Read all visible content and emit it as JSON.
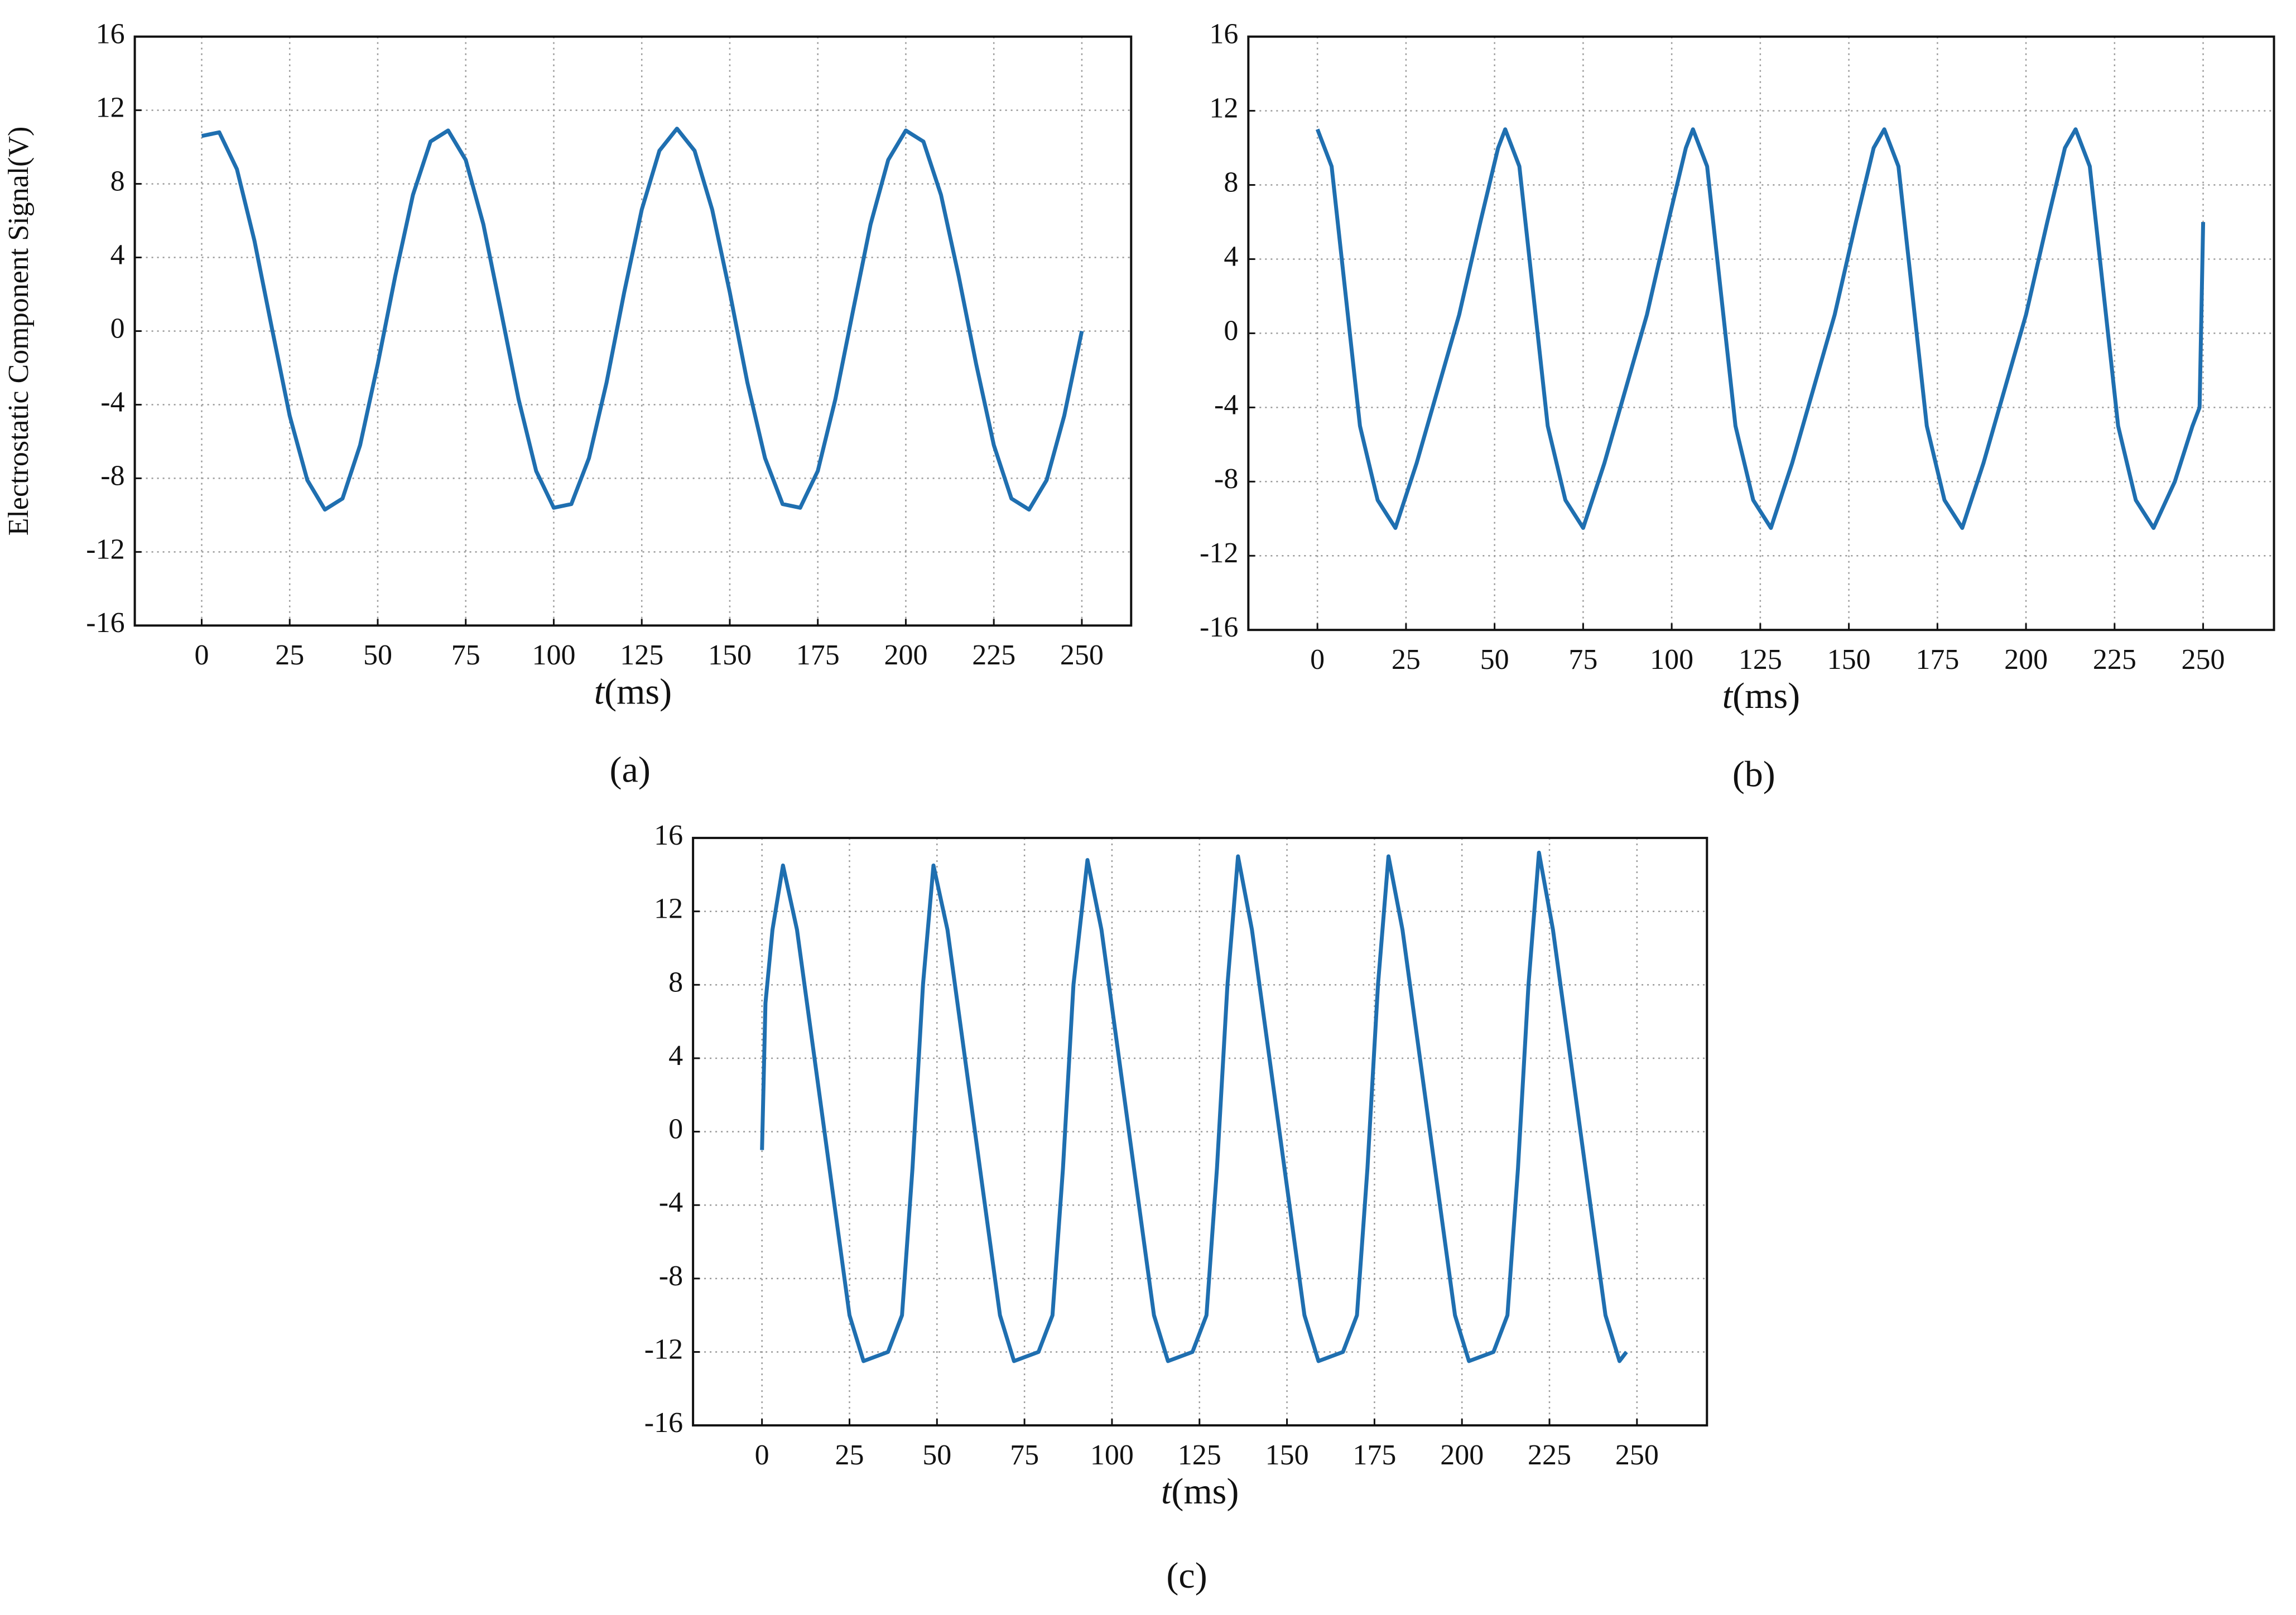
{
  "chart_data": [
    {
      "type": "line",
      "label": "(a)",
      "xlabel": "t(ms)",
      "ylabel": "Electrostatic Component Signal(V)",
      "x": [
        0,
        5,
        10,
        15,
        20,
        25,
        30,
        35,
        40,
        45,
        50,
        55,
        60,
        65,
        70,
        75,
        80,
        85,
        90,
        95,
        100,
        105,
        110,
        115,
        120,
        125,
        130,
        135,
        140,
        145,
        150,
        155,
        160,
        165,
        170,
        175,
        180,
        185,
        190,
        195,
        200,
        205,
        210,
        215,
        220,
        225,
        230,
        235,
        240,
        245,
        250
      ],
      "values": [
        10.6,
        10.8,
        8.8,
        4.9,
        0.1,
        -4.6,
        -8.1,
        -9.7,
        -9.1,
        -6.2,
        -1.8,
        3.0,
        7.4,
        10.3,
        10.9,
        9.3,
        5.8,
        1.1,
        -3.7,
        -7.6,
        -9.6,
        -9.4,
        -6.9,
        -2.8,
        2.1,
        6.6,
        9.8,
        11.0,
        9.8,
        6.6,
        2.1,
        -2.8,
        -6.9,
        -9.4,
        -9.6,
        -7.6,
        -3.7,
        1.1,
        5.8,
        9.3,
        10.9,
        10.3,
        7.4,
        3.0,
        -1.8,
        -6.2,
        -9.1,
        -9.7,
        -8.1,
        -4.6,
        0
      ],
      "color": "#1f6fb0",
      "xlim": [
        -19,
        264
      ],
      "ylim": [
        -16,
        16
      ],
      "xticks": [
        0,
        25,
        50,
        75,
        100,
        125,
        150,
        175,
        200,
        225,
        250
      ],
      "yticks": [
        -16,
        -12,
        -8,
        -4,
        0,
        4,
        8,
        12,
        16
      ],
      "grid": true
    },
    {
      "type": "line",
      "label": "(b)",
      "xlabel": "t(ms)",
      "x": [
        0,
        4,
        8,
        12,
        17,
        22,
        28,
        34,
        40,
        46,
        51,
        53,
        57,
        61,
        65,
        70,
        75,
        81,
        87,
        93,
        99,
        104,
        106,
        110,
        114,
        118,
        123,
        128,
        134,
        140,
        146,
        152,
        157,
        160,
        164,
        168,
        172,
        177,
        182,
        188,
        194,
        200,
        206,
        211,
        214,
        218,
        222,
        226,
        231,
        236,
        242,
        247,
        249,
        250
      ],
      "values": [
        11,
        9,
        2,
        -5,
        -9,
        -10.5,
        -7,
        -3,
        1,
        6,
        10,
        11,
        9,
        2,
        -5,
        -9,
        -10.5,
        -7,
        -3,
        1,
        6,
        10,
        11,
        9,
        2,
        -5,
        -9,
        -10.5,
        -7,
        -3,
        1,
        6,
        10,
        11,
        9,
        2,
        -5,
        -9,
        -10.5,
        -7,
        -3,
        1,
        6,
        10,
        11,
        9,
        2,
        -5,
        -9,
        -10.5,
        -8,
        -5,
        -4,
        6
      ],
      "color": "#1f6fb0",
      "xlim": [
        -19.5,
        270
      ],
      "ylim": [
        -16,
        16
      ],
      "xticks": [
        0,
        25,
        50,
        75,
        100,
        125,
        150,
        175,
        200,
        225,
        250
      ],
      "yticks": [
        -16,
        -12,
        -8,
        -4,
        0,
        4,
        8,
        12,
        16
      ],
      "grid": true
    },
    {
      "type": "line",
      "label": "(c)",
      "xlabel": "t(ms)",
      "x": [
        0,
        1,
        3,
        6,
        10,
        15,
        20,
        25,
        29,
        36,
        40,
        43,
        46,
        49,
        53,
        58,
        63,
        68,
        72,
        79,
        83,
        86,
        89,
        93,
        97,
        102,
        107,
        112,
        116,
        123,
        127,
        130,
        133,
        136,
        140,
        145,
        150,
        155,
        159,
        166,
        170,
        173,
        176,
        179,
        183,
        188,
        193,
        198,
        202,
        209,
        213,
        216,
        219,
        222,
        226,
        231,
        236,
        241,
        245,
        247
      ],
      "values": [
        -1,
        7,
        11,
        14.5,
        11,
        4,
        -3,
        -10,
        -12.5,
        -12,
        -10,
        -2,
        8,
        14.5,
        11,
        4,
        -3,
        -10,
        -12.5,
        -12,
        -10,
        -2,
        8,
        14.8,
        11,
        4,
        -3,
        -10,
        -12.5,
        -12,
        -10,
        -2,
        8,
        15,
        11,
        4,
        -3,
        -10,
        -12.5,
        -12,
        -10,
        -2,
        8,
        15,
        11,
        4,
        -3,
        -10,
        -12.5,
        -12,
        -10,
        -2,
        8,
        15.2,
        11,
        4,
        -3,
        -10,
        -12.5,
        -12
      ],
      "color": "#1f6fb0",
      "xlim": [
        -19.7,
        270
      ],
      "ylim": [
        -16,
        16
      ],
      "xticks": [
        0,
        25,
        50,
        75,
        100,
        125,
        150,
        175,
        200,
        225,
        250
      ],
      "yticks": [
        -16,
        -12,
        -8,
        -4,
        0,
        4,
        8,
        12,
        16
      ],
      "grid": true
    }
  ]
}
